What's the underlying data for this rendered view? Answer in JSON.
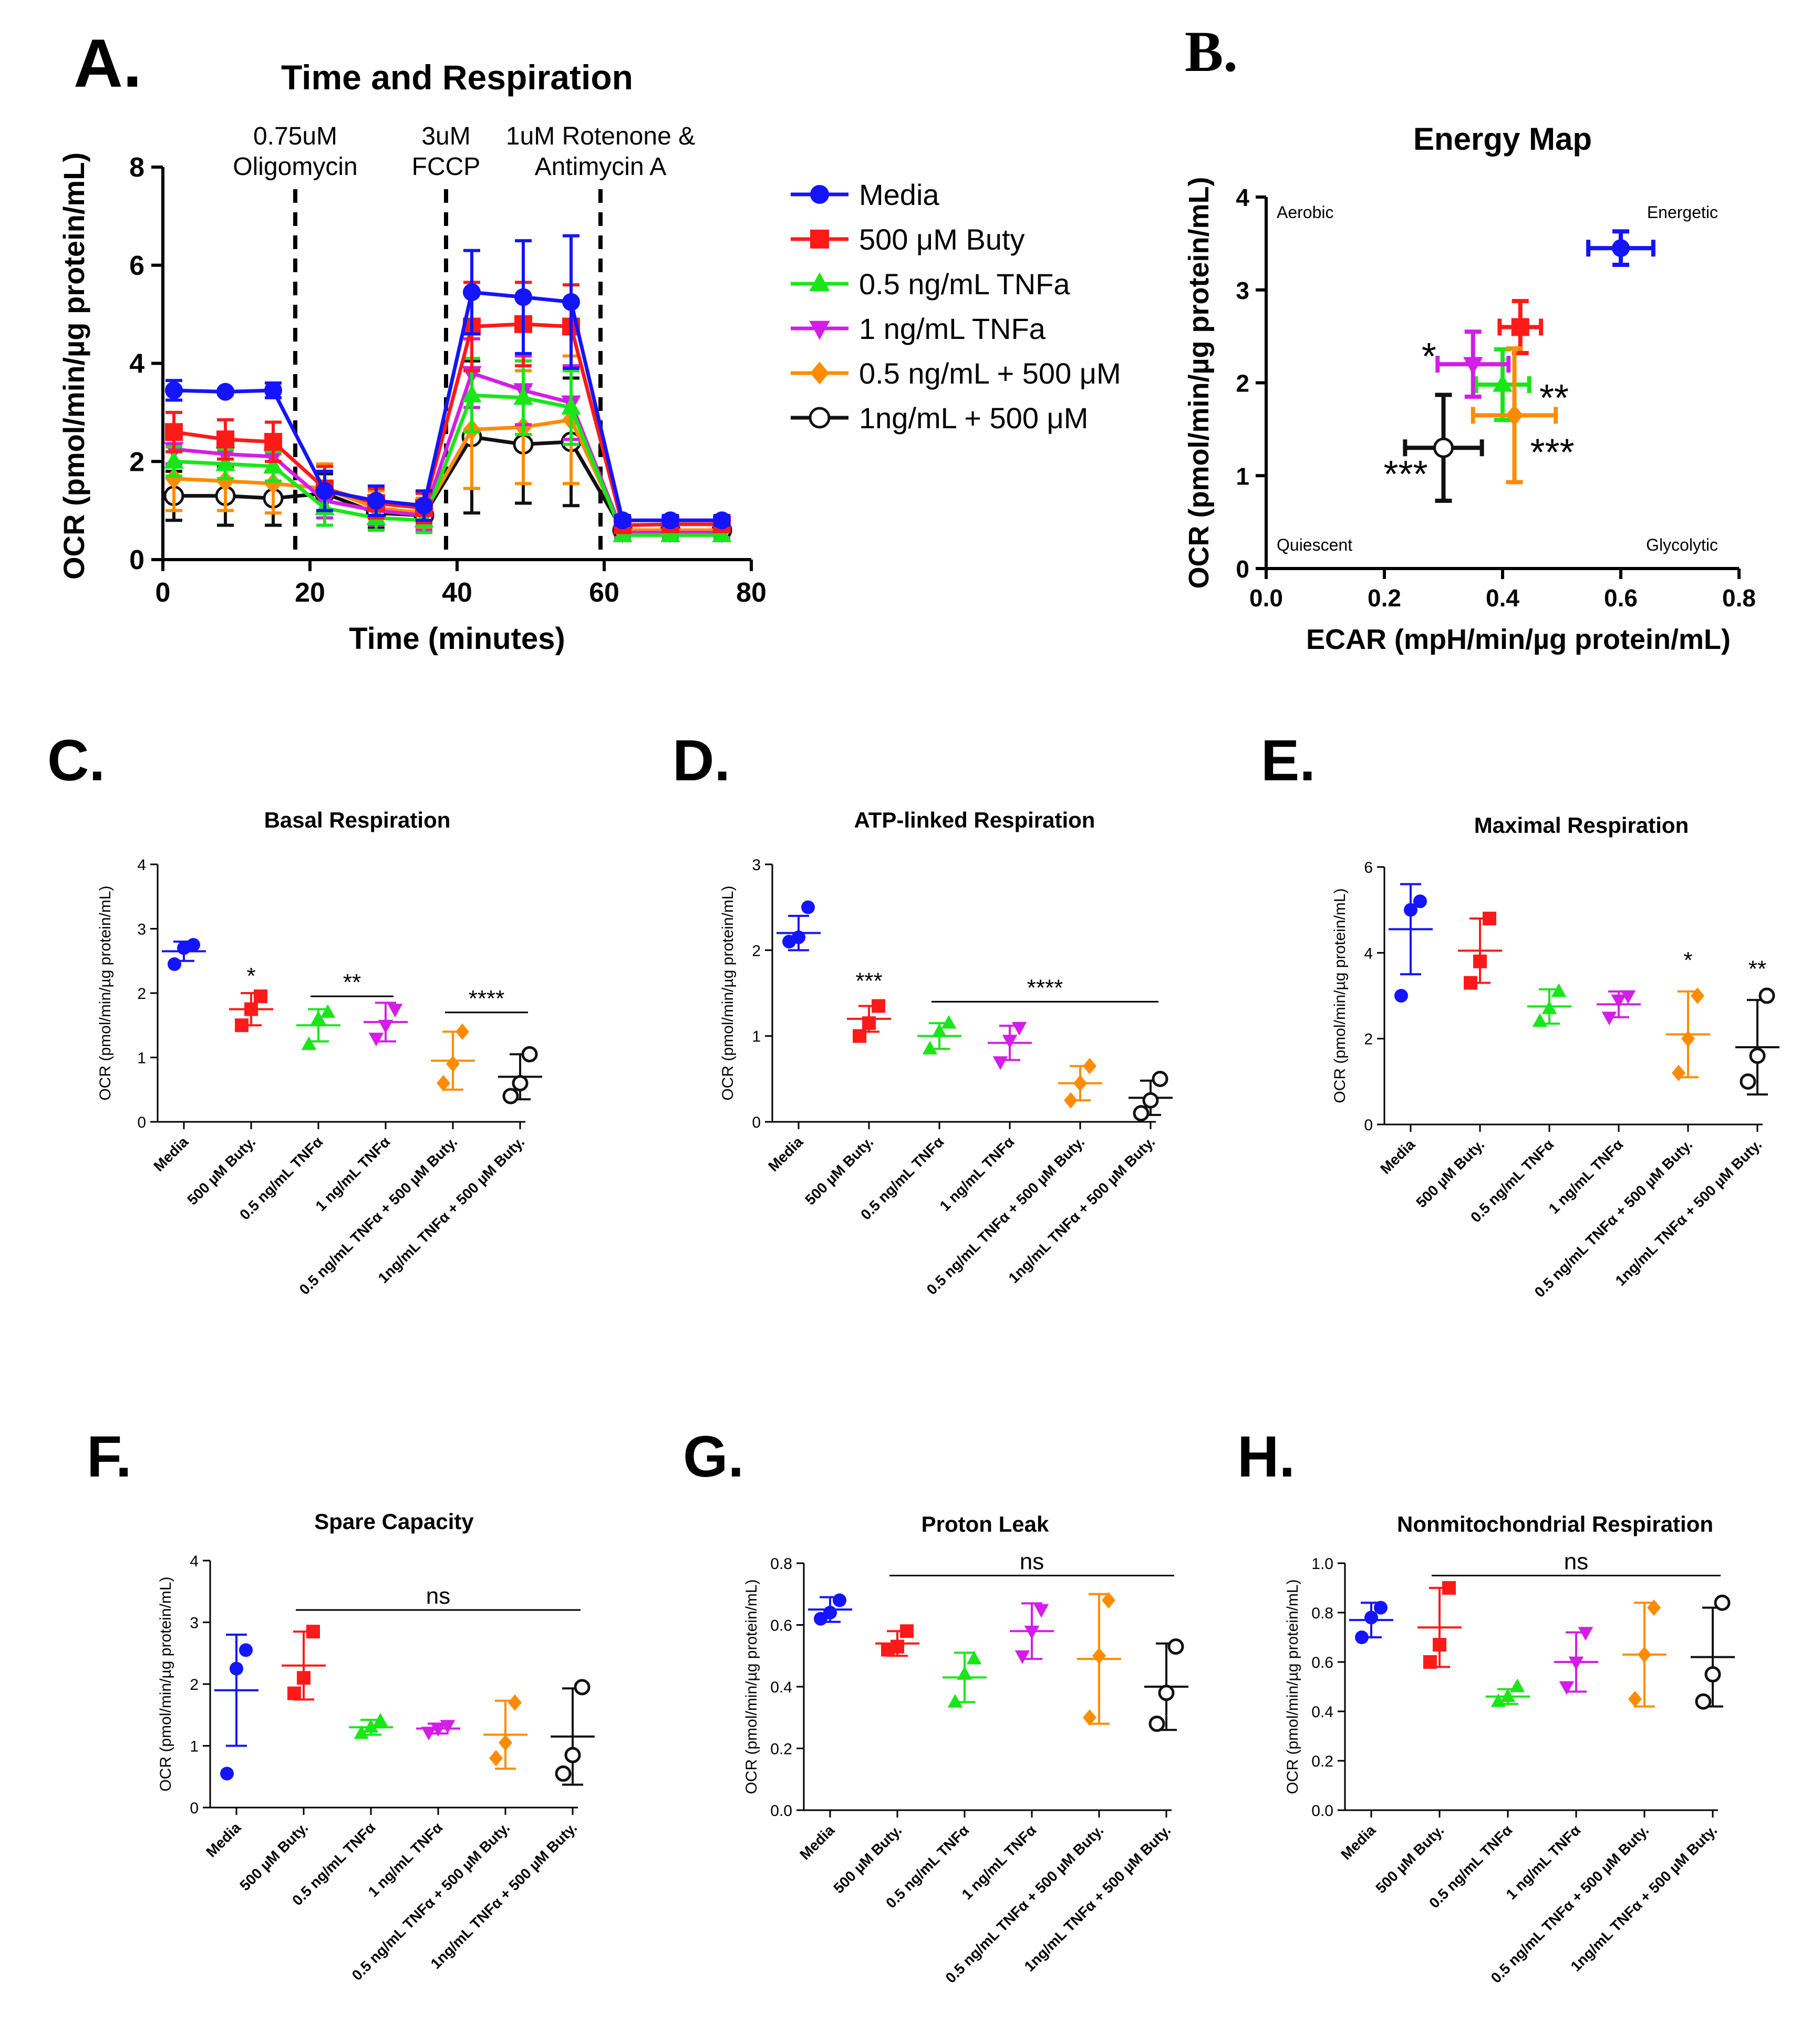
{
  "figure": {
    "colors": {
      "media": "#1414ff",
      "buty": "#ff1a1a",
      "tnf05": "#19e619",
      "tnf1": "#d21ee6",
      "combo05": "#ff8c00",
      "combo1": "#111111"
    },
    "categories": [
      "Media",
      "500 µM Buty.",
      "0.5 ng/mL TNFα",
      "1 ng/mL TNFα",
      "0.5 ng/mL TNFα + 500 µM Buty.",
      "1ng/mL TNFα + 500 µM Buty."
    ],
    "category_colors": [
      "#1414ff",
      "#ff1a1a",
      "#19e619",
      "#d21ee6",
      "#ff8c00",
      "#111111"
    ]
  },
  "chart_data": [
    {
      "id": "A",
      "panel_label": "A.",
      "type": "line",
      "title": "Time and Respiration",
      "xlabel": "Time (minutes)",
      "ylabel": "OCR (pmol/min/µg protein/mL)",
      "xlim": [
        0,
        80
      ],
      "ylim": [
        0,
        8
      ],
      "xticks": [
        0,
        20,
        40,
        60,
        80
      ],
      "yticks": [
        0,
        2,
        4,
        6,
        8
      ],
      "x": [
        1.5,
        8.5,
        15,
        22,
        29,
        35.5,
        42,
        49,
        55.5,
        62.5,
        69,
        76
      ],
      "injections": [
        {
          "x": 18,
          "lines": [
            "0.75uM",
            "Oligomycin"
          ]
        },
        {
          "x": 38.5,
          "lines": [
            "3uM",
            "FCCP"
          ]
        },
        {
          "x": 59.5,
          "lines": [
            "1uM Rotenone &",
            "Antimycin A"
          ]
        }
      ],
      "series": [
        {
          "name": "Media",
          "color": "#1414ff",
          "marker": "circle",
          "values": [
            3.45,
            3.42,
            3.45,
            1.4,
            1.2,
            1.1,
            5.45,
            5.35,
            5.25,
            0.8,
            0.8,
            0.8
          ],
          "errors": [
            0.2,
            0.05,
            0.15,
            0.4,
            0.3,
            0.3,
            0.85,
            1.15,
            1.35,
            0.1,
            0.1,
            0.1
          ]
        },
        {
          "name": "500 μM Buty",
          "color": "#ff1a1a",
          "marker": "square",
          "values": [
            2.6,
            2.45,
            2.4,
            1.45,
            1.15,
            1.05,
            4.75,
            4.8,
            4.75,
            0.7,
            0.72,
            0.72
          ],
          "errors": [
            0.4,
            0.4,
            0.4,
            0.45,
            0.3,
            0.3,
            0.9,
            0.85,
            0.85,
            0.1,
            0.1,
            0.1
          ]
        },
        {
          "name": "0.5 ng/mL TNFa",
          "color": "#19e619",
          "marker": "triangle-up",
          "values": [
            2.0,
            1.95,
            1.9,
            1.05,
            0.85,
            0.8,
            3.35,
            3.3,
            3.1,
            0.5,
            0.5,
            0.5
          ],
          "errors": [
            0.3,
            0.3,
            0.3,
            0.35,
            0.25,
            0.25,
            0.75,
            0.75,
            0.75,
            0.1,
            0.1,
            0.1
          ]
        },
        {
          "name": "1 ng/mL TNFa",
          "color": "#d21ee6",
          "marker": "triangle-down",
          "values": [
            2.25,
            2.15,
            2.1,
            1.2,
            1.0,
            0.9,
            3.8,
            3.45,
            3.2,
            0.55,
            0.55,
            0.55
          ],
          "errors": [
            0.3,
            0.3,
            0.3,
            0.35,
            0.3,
            0.3,
            0.7,
            0.7,
            0.75,
            0.1,
            0.1,
            0.1
          ]
        },
        {
          "name": "0.5 ng/mL + 500 μM",
          "color": "#ff8c00",
          "marker": "diamond",
          "values": [
            1.65,
            1.6,
            1.55,
            1.45,
            1.05,
            0.95,
            2.65,
            2.7,
            2.85,
            0.6,
            0.6,
            0.6
          ],
          "errors": [
            0.65,
            0.6,
            0.6,
            0.5,
            0.35,
            0.3,
            1.2,
            1.15,
            1.3,
            0.15,
            0.15,
            0.15
          ]
        },
        {
          "name": "1ng/mL + 500 μM",
          "color": "#111111",
          "marker": "open-circle",
          "values": [
            1.3,
            1.3,
            1.25,
            1.35,
            0.95,
            0.9,
            2.5,
            2.35,
            2.4,
            0.6,
            0.6,
            0.6
          ],
          "errors": [
            0.5,
            0.6,
            0.55,
            0.4,
            0.3,
            0.3,
            1.55,
            1.2,
            1.3,
            0.15,
            0.15,
            0.15
          ]
        }
      ]
    },
    {
      "id": "B",
      "panel_label": "B.",
      "type": "scatter",
      "title": "Energy Map",
      "xlabel": "ECAR (mpH/min/µg protein/mL)",
      "ylabel": "OCR (pmol/min/µg protein/mL)",
      "xlim": [
        0,
        0.8
      ],
      "ylim": [
        0,
        4
      ],
      "xticks": [
        "0.0",
        "0.2",
        "0.4",
        "0.6",
        "0.8"
      ],
      "yticks": [
        "0",
        "1",
        "2",
        "3",
        "4"
      ],
      "quadrants": [
        "Aerobic",
        "Energetic",
        "Quiescent",
        "Glycolytic"
      ],
      "points": [
        {
          "name": "Media",
          "color": "#1414ff",
          "marker": "circle",
          "x": 0.6,
          "y": 3.45,
          "xerr": 0.055,
          "yerr": 0.18,
          "sig": ""
        },
        {
          "name": "500 μM Buty",
          "color": "#ff1a1a",
          "marker": "square",
          "x": 0.43,
          "y": 2.6,
          "xerr": 0.035,
          "yerr": 0.28,
          "sig": ""
        },
        {
          "name": "0.5 ng/mL TNFa",
          "color": "#19e619",
          "marker": "triangle-up",
          "x": 0.4,
          "y": 1.98,
          "xerr": 0.045,
          "yerr": 0.38,
          "sig": "**"
        },
        {
          "name": "1 ng/mL TNFa",
          "color": "#d21ee6",
          "marker": "triangle-down",
          "x": 0.35,
          "y": 2.2,
          "xerr": 0.06,
          "yerr": 0.35,
          "sig": "*"
        },
        {
          "name": "0.5 ng/mL + 500 μM",
          "color": "#ff8c00",
          "marker": "diamond",
          "x": 0.42,
          "y": 1.65,
          "xerr": 0.07,
          "yerr": 0.72,
          "sig": "***"
        },
        {
          "name": "1ng/mL + 500 μM",
          "color": "#111111",
          "marker": "open-circle",
          "x": 0.3,
          "y": 1.3,
          "xerr": 0.065,
          "yerr": 0.57,
          "sig": "***"
        }
      ]
    },
    {
      "id": "C",
      "panel_label": "C.",
      "type": "scatter",
      "title": "Basal Respiration",
      "ylabel": "OCR (pmol/min/µg protein/mL)",
      "ylim": [
        0,
        4
      ],
      "yticks": [
        "0",
        "1",
        "2",
        "3",
        "4"
      ],
      "groups": [
        {
          "mean": 2.65,
          "sd": 0.15,
          "points": [
            2.45,
            2.7,
            2.75
          ]
        },
        {
          "mean": 1.75,
          "sd": 0.25,
          "points": [
            1.5,
            1.75,
            1.95
          ]
        },
        {
          "mean": 1.5,
          "sd": 0.25,
          "points": [
            1.2,
            1.6,
            1.7
          ]
        },
        {
          "mean": 1.55,
          "sd": 0.3,
          "points": [
            1.3,
            1.5,
            1.75
          ]
        },
        {
          "mean": 0.95,
          "sd": 0.45,
          "points": [
            0.6,
            0.9,
            1.4
          ]
        },
        {
          "mean": 0.7,
          "sd": 0.35,
          "points": [
            0.4,
            0.6,
            1.05
          ]
        }
      ],
      "annotations": [
        {
          "text": "*",
          "from": 1,
          "to": 1,
          "y": 2.05,
          "bar": false
        },
        {
          "text": "**",
          "from": 2,
          "to": 3,
          "y": 1.95,
          "bar": true
        },
        {
          "text": "****",
          "from": 4,
          "to": 5,
          "y": 1.7,
          "bar": true
        }
      ]
    },
    {
      "id": "D",
      "panel_label": "D.",
      "type": "scatter",
      "title": "ATP-linked Respiration",
      "ylabel": "OCR (pmol/min/µg protein/mL)",
      "ylim": [
        0,
        3
      ],
      "yticks": [
        "0",
        "1",
        "2",
        "3"
      ],
      "groups": [
        {
          "mean": 2.2,
          "sd": 0.2,
          "points": [
            2.1,
            2.15,
            2.5
          ]
        },
        {
          "mean": 1.2,
          "sd": 0.15,
          "points": [
            1.0,
            1.15,
            1.35
          ]
        },
        {
          "mean": 1.0,
          "sd": 0.15,
          "points": [
            0.85,
            1.05,
            1.15
          ]
        },
        {
          "mean": 0.92,
          "sd": 0.2,
          "points": [
            0.7,
            0.95,
            1.1
          ]
        },
        {
          "mean": 0.45,
          "sd": 0.2,
          "points": [
            0.25,
            0.45,
            0.65
          ]
        },
        {
          "mean": 0.28,
          "sd": 0.2,
          "points": [
            0.1,
            0.25,
            0.5
          ]
        }
      ],
      "annotations": [
        {
          "text": "***",
          "from": 1,
          "to": 1,
          "y": 1.48,
          "bar": false
        },
        {
          "text": "****",
          "from": 2,
          "to": 5,
          "y": 1.4,
          "bar": true
        }
      ]
    },
    {
      "id": "E",
      "panel_label": "E.",
      "type": "scatter",
      "title": "Maximal Respiration",
      "ylabel": "OCR (pmol/min/µg protein/mL)",
      "ylim": [
        0,
        6
      ],
      "yticks": [
        "0",
        "2",
        "4",
        "6"
      ],
      "groups": [
        {
          "mean": 4.55,
          "sd": 1.05,
          "points": [
            3.0,
            5.0,
            5.2
          ]
        },
        {
          "mean": 4.05,
          "sd": 0.75,
          "points": [
            3.3,
            3.8,
            4.8
          ]
        },
        {
          "mean": 2.75,
          "sd": 0.4,
          "points": [
            2.4,
            2.7,
            3.1
          ]
        },
        {
          "mean": 2.8,
          "sd": 0.3,
          "points": [
            2.5,
            2.9,
            3.0
          ]
        },
        {
          "mean": 2.1,
          "sd": 1.0,
          "points": [
            1.2,
            2.0,
            3.0
          ]
        },
        {
          "mean": 1.8,
          "sd": 1.1,
          "points": [
            1.0,
            1.6,
            3.0
          ]
        }
      ],
      "annotations": [
        {
          "text": "*",
          "from": 4,
          "to": 4,
          "y": 3.5,
          "bar": false
        },
        {
          "text": "**",
          "from": 5,
          "to": 5,
          "y": 3.3,
          "bar": false
        }
      ]
    },
    {
      "id": "F",
      "panel_label": "F.",
      "type": "scatter",
      "title": "Spare Capacity",
      "ylabel": "OCR (pmol/min/µg protein/mL)",
      "ylim": [
        0,
        4
      ],
      "yticks": [
        "0",
        "1",
        "2",
        "3",
        "4"
      ],
      "groups": [
        {
          "mean": 1.9,
          "sd": 0.9,
          "points": [
            0.55,
            2.25,
            2.55
          ]
        },
        {
          "mean": 2.3,
          "sd": 0.55,
          "points": [
            1.85,
            2.1,
            2.85
          ]
        },
        {
          "mean": 1.3,
          "sd": 0.12,
          "points": [
            1.2,
            1.3,
            1.4
          ]
        },
        {
          "mean": 1.28,
          "sd": 0.08,
          "points": [
            1.22,
            1.28,
            1.33
          ]
        },
        {
          "mean": 1.18,
          "sd": 0.55,
          "points": [
            0.8,
            1.05,
            1.7
          ]
        },
        {
          "mean": 1.15,
          "sd": 0.78,
          "points": [
            0.55,
            0.85,
            1.95
          ]
        }
      ],
      "annotations": [
        {
          "text": "ns",
          "from": 1,
          "to": 5,
          "y": 3.2,
          "bar": true
        }
      ]
    },
    {
      "id": "G",
      "panel_label": "G.",
      "type": "scatter",
      "title": "Proton Leak",
      "ylabel": "OCR (pmol/min/µg protein/mL)",
      "ylim": [
        0,
        0.8
      ],
      "yticks": [
        "0.0",
        "0.2",
        "0.4",
        "0.6",
        "0.8"
      ],
      "groups": [
        {
          "mean": 0.65,
          "sd": 0.04,
          "points": [
            0.62,
            0.64,
            0.68
          ]
        },
        {
          "mean": 0.54,
          "sd": 0.04,
          "points": [
            0.52,
            0.53,
            0.58
          ]
        },
        {
          "mean": 0.43,
          "sd": 0.08,
          "points": [
            0.35,
            0.44,
            0.49
          ]
        },
        {
          "mean": 0.58,
          "sd": 0.09,
          "points": [
            0.5,
            0.58,
            0.65
          ]
        },
        {
          "mean": 0.49,
          "sd": 0.21,
          "points": [
            0.3,
            0.5,
            0.68
          ]
        },
        {
          "mean": 0.4,
          "sd": 0.14,
          "points": [
            0.28,
            0.38,
            0.53
          ]
        }
      ],
      "annotations": [
        {
          "text": "ns",
          "from": 1,
          "to": 5,
          "y": 0.76,
          "bar": true
        }
      ]
    },
    {
      "id": "H",
      "panel_label": "H.",
      "type": "scatter",
      "title": "Nonmitochondrial Respiration",
      "ylabel": "OCR (pmol/min/µg protein/mL)",
      "ylim": [
        0,
        1.0
      ],
      "yticks": [
        "0.0",
        "0.2",
        "0.4",
        "0.6",
        "0.8",
        "1.0"
      ],
      "groups": [
        {
          "mean": 0.77,
          "sd": 0.07,
          "points": [
            0.7,
            0.78,
            0.82
          ]
        },
        {
          "mean": 0.74,
          "sd": 0.16,
          "points": [
            0.6,
            0.67,
            0.9
          ]
        },
        {
          "mean": 0.46,
          "sd": 0.03,
          "points": [
            0.44,
            0.46,
            0.5
          ]
        },
        {
          "mean": 0.6,
          "sd": 0.12,
          "points": [
            0.5,
            0.6,
            0.72
          ]
        },
        {
          "mean": 0.63,
          "sd": 0.21,
          "points": [
            0.45,
            0.63,
            0.82
          ]
        },
        {
          "mean": 0.62,
          "sd": 0.2,
          "points": [
            0.44,
            0.55,
            0.84
          ]
        }
      ],
      "annotations": [
        {
          "text": "ns",
          "from": 1,
          "to": 5,
          "y": 0.95,
          "bar": true
        }
      ]
    }
  ]
}
